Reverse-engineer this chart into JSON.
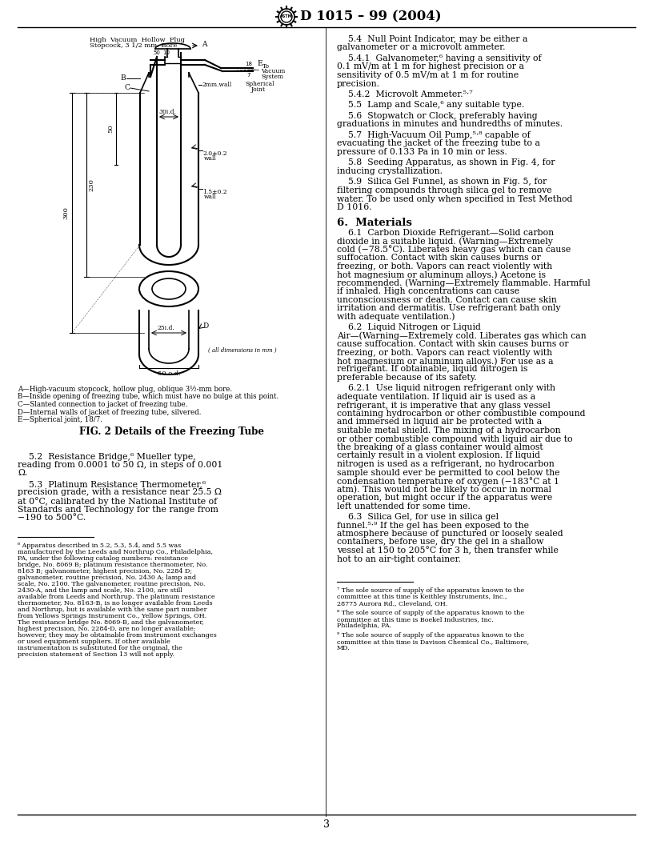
{
  "title": "D 1015 – 99 (2004)",
  "page_number": "3",
  "fig_caption": "FIG. 2 Details of the Freezing Tube",
  "diagram_labels_list": [
    [
      "A",
      "High-vacuum stopcock, hollow plug, oblique 3½-mm bore."
    ],
    [
      "B",
      "Inside opening of freezing tube, which must have no bulge at this point."
    ],
    [
      "C",
      "Slanted connection to jacket of freezing tube."
    ],
    [
      "D",
      "Internal walls of jacket of freezing tube, silvered."
    ],
    [
      "E",
      "Spherical joint, 18/7."
    ]
  ]
}
